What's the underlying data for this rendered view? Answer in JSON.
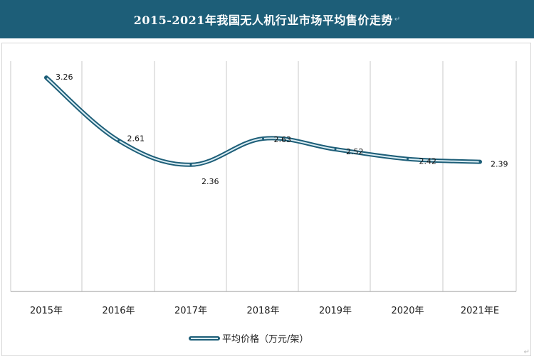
{
  "title": "2015-2021年我国无人机行业市场平均售价走势",
  "chart_data": {
    "type": "line",
    "title": "2015-2021年我国无人机行业市场平均售价走势",
    "categories": [
      "2015年",
      "2016年",
      "2017年",
      "2018年",
      "2019年",
      "2020年",
      "2021年E"
    ],
    "series": [
      {
        "name": "平均价格（万元/架）",
        "values": [
          3.26,
          2.61,
          2.36,
          2.63,
          2.52,
          2.42,
          2.39
        ]
      }
    ],
    "xlabel": "",
    "ylabel": "",
    "data_labels": [
      "3.26",
      "2.61",
      "2.36",
      "2.63",
      "2.52",
      "2.42",
      "2.39"
    ],
    "grid": "vertical",
    "legend": "bottom",
    "colors": {
      "line": "#1d5e78",
      "title_bar": "#1d5e78"
    }
  }
}
